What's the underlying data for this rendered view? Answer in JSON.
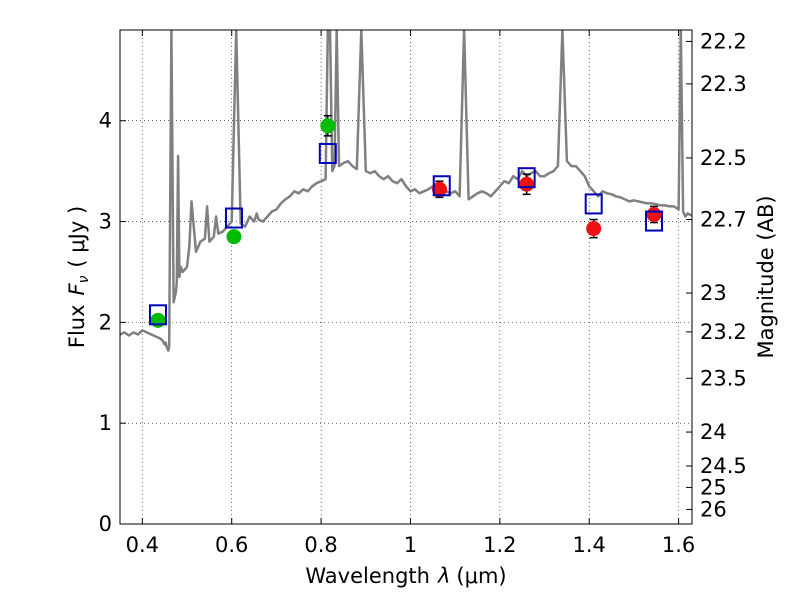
{
  "chart_data": {
    "type": "scatter",
    "xlabel_prefix": "Wavelength",
    "xlabel_symbol": "λ",
    "xlabel_unit": "(μm)",
    "ylabel_prefix": "Flux",
    "ylabel_symbol": "F",
    "ylabel_subscript": "ν",
    "ylabel_unit": "( μJy )",
    "y2label": "Magnitude (AB)",
    "xlim": [
      0.35,
      1.63
    ],
    "ylim": [
      0,
      4.9
    ],
    "grid": true,
    "x_ticks": [
      0.4,
      0.6,
      0.8,
      1.0,
      1.2,
      1.4,
      1.6
    ],
    "x_tick_labels": [
      "0.4",
      "0.6",
      "0.8",
      "1",
      "1.2",
      "1.4",
      "1.6"
    ],
    "y_ticks": [
      0,
      1,
      2,
      3,
      4
    ],
    "y_tick_labels": [
      "0",
      "1",
      "2",
      "3",
      "4"
    ],
    "mag_ticks": [
      22.2,
      22.3,
      22.5,
      22.7,
      23,
      23.2,
      23.5,
      24,
      24.5,
      25,
      26
    ],
    "mag_tick_labels": [
      "22.2",
      "22.3",
      "22.5",
      "22.7",
      "23",
      "23.2",
      "23.5",
      "24",
      "24.5",
      "25",
      "26"
    ],
    "spectrum": {
      "color": "#808080",
      "x": [
        0.35,
        0.36,
        0.37,
        0.38,
        0.39,
        0.4,
        0.41,
        0.42,
        0.43,
        0.44,
        0.445,
        0.45,
        0.452,
        0.455,
        0.458,
        0.46,
        0.465,
        0.47,
        0.475,
        0.477,
        0.48,
        0.483,
        0.486,
        0.49,
        0.5,
        0.505,
        0.51,
        0.52,
        0.525,
        0.53,
        0.54,
        0.545,
        0.55,
        0.56,
        0.565,
        0.57,
        0.58,
        0.59,
        0.6,
        0.61,
        0.62,
        0.63,
        0.64,
        0.65,
        0.656,
        0.66,
        0.67,
        0.68,
        0.69,
        0.7,
        0.71,
        0.72,
        0.73,
        0.74,
        0.75,
        0.76,
        0.77,
        0.78,
        0.79,
        0.8,
        0.81,
        0.815,
        0.82,
        0.825,
        0.83,
        0.835,
        0.84,
        0.85,
        0.86,
        0.87,
        0.88,
        0.89,
        0.9,
        0.91,
        0.92,
        0.93,
        0.94,
        0.95,
        0.96,
        0.97,
        0.98,
        0.99,
        1.0,
        1.01,
        1.02,
        1.03,
        1.04,
        1.05,
        1.06,
        1.07,
        1.08,
        1.09,
        1.1,
        1.11,
        1.12,
        1.13,
        1.14,
        1.15,
        1.16,
        1.17,
        1.18,
        1.19,
        1.2,
        1.21,
        1.22,
        1.23,
        1.24,
        1.25,
        1.26,
        1.27,
        1.28,
        1.29,
        1.3,
        1.31,
        1.32,
        1.33,
        1.34,
        1.35,
        1.36,
        1.37,
        1.38,
        1.39,
        1.4,
        1.41,
        1.42,
        1.43,
        1.44,
        1.45,
        1.46,
        1.47,
        1.48,
        1.49,
        1.5,
        1.51,
        1.52,
        1.53,
        1.54,
        1.55,
        1.56,
        1.57,
        1.58,
        1.59,
        1.6,
        1.605,
        1.61,
        1.615,
        1.62,
        1.63
      ],
      "y": [
        1.88,
        1.9,
        1.87,
        1.9,
        1.88,
        1.92,
        1.9,
        1.88,
        1.86,
        1.84,
        1.82,
        1.78,
        1.8,
        1.75,
        1.72,
        1.76,
        4.9,
        2.2,
        2.3,
        2.4,
        3.65,
        2.45,
        2.55,
        2.5,
        2.55,
        2.75,
        3.2,
        2.7,
        2.75,
        2.8,
        2.83,
        3.15,
        2.8,
        2.85,
        3.05,
        2.88,
        2.9,
        2.95,
        3.0,
        4.9,
        2.98,
        2.95,
        3.05,
        3.0,
        3.08,
        3.02,
        3.0,
        3.05,
        3.1,
        3.12,
        3.18,
        3.22,
        3.25,
        3.3,
        3.28,
        3.32,
        3.3,
        3.35,
        3.38,
        3.4,
        3.42,
        4.9,
        4.9,
        3.5,
        3.55,
        4.9,
        3.55,
        3.58,
        3.6,
        3.55,
        3.52,
        4.9,
        3.5,
        3.48,
        3.5,
        3.45,
        3.42,
        3.45,
        3.4,
        3.38,
        3.42,
        3.35,
        3.3,
        3.32,
        3.28,
        3.3,
        3.32,
        3.35,
        3.3,
        3.32,
        3.3,
        3.28,
        3.3,
        3.25,
        4.9,
        3.22,
        3.25,
        3.28,
        3.3,
        3.28,
        3.25,
        3.3,
        3.35,
        3.4,
        3.38,
        3.45,
        3.42,
        3.5,
        3.45,
        3.48,
        3.5,
        3.45,
        3.45,
        3.48,
        3.5,
        3.55,
        4.9,
        3.6,
        3.55,
        3.55,
        3.5,
        3.45,
        3.35,
        3.3,
        3.25,
        3.3,
        3.28,
        3.27,
        3.25,
        3.24,
        3.22,
        3.2,
        3.21,
        3.2,
        3.19,
        3.18,
        3.18,
        3.17,
        3.16,
        3.16,
        3.15,
        3.15,
        3.12,
        4.9,
        3.1,
        3.05,
        3.08,
        3.06
      ]
    },
    "series": [
      {
        "marker": "circle",
        "color": "#00bb00",
        "points": [
          {
            "x": 0.435,
            "y": 2.02,
            "err": 0.05
          },
          {
            "x": 0.605,
            "y": 2.85,
            "err": 0.05
          },
          {
            "x": 0.815,
            "y": 3.95,
            "err": 0.1
          }
        ]
      },
      {
        "marker": "circle",
        "color": "#ee1111",
        "points": [
          {
            "x": 1.065,
            "y": 3.32,
            "err": 0.08
          },
          {
            "x": 1.26,
            "y": 3.37,
            "err": 0.1
          },
          {
            "x": 1.41,
            "y": 2.93,
            "err": 0.09
          },
          {
            "x": 1.545,
            "y": 3.07,
            "err": 0.08
          }
        ]
      },
      {
        "marker": "square-open",
        "color": "#0000bb",
        "points": [
          {
            "x": 0.435,
            "y": 2.07
          },
          {
            "x": 0.605,
            "y": 3.03
          },
          {
            "x": 0.815,
            "y": 3.67
          },
          {
            "x": 1.07,
            "y": 3.35
          },
          {
            "x": 1.26,
            "y": 3.43
          },
          {
            "x": 1.41,
            "y": 3.17
          },
          {
            "x": 1.545,
            "y": 3.0
          }
        ]
      }
    ]
  }
}
